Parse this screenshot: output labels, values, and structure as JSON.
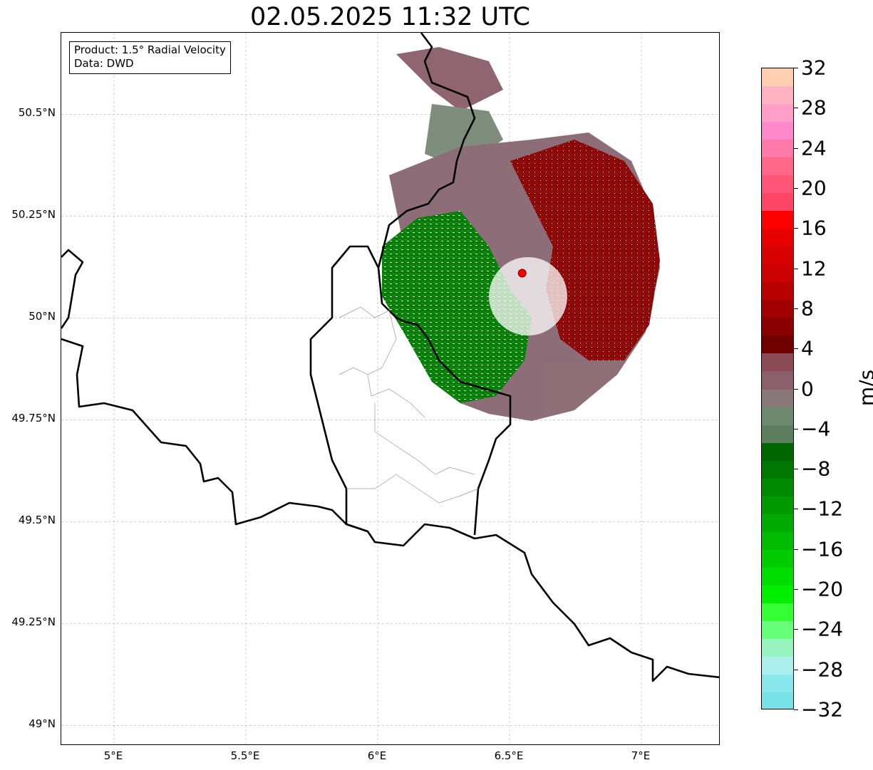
{
  "title": "02.05.2025 11:32 UTC",
  "info_box": {
    "product": "Product: 1.5° Radial Velocity",
    "data": "Data: DWD"
  },
  "map": {
    "lon_range": [
      4.8,
      7.3
    ],
    "lat_range": [
      48.95,
      50.7
    ],
    "lat_ticks": [
      {
        "value": 50.5,
        "label": "50.5°N"
      },
      {
        "value": 50.25,
        "label": "50.25°N"
      },
      {
        "value": 50.0,
        "label": "50°N"
      },
      {
        "value": 49.75,
        "label": "49.75°N"
      },
      {
        "value": 49.5,
        "label": "49.5°N"
      },
      {
        "value": 49.25,
        "label": "49.25°N"
      },
      {
        "value": 49.0,
        "label": "49°N"
      }
    ],
    "lon_ticks": [
      {
        "value": 5.0,
        "label": "5°E"
      },
      {
        "value": 5.5,
        "label": "5.5°E"
      },
      {
        "value": 6.0,
        "label": "6°E"
      },
      {
        "value": 6.5,
        "label": "6.5°E"
      },
      {
        "value": 7.0,
        "label": "7°E"
      }
    ],
    "radar_site": {
      "lon": 6.548,
      "lat": 50.11,
      "color": "#ff0000"
    },
    "border_color": "#000000",
    "internal_border_color": "#999999",
    "gridlines": true
  },
  "colorbar": {
    "unit": "m/s",
    "range": [
      -32,
      32
    ],
    "ticks": [
      "32",
      "28",
      "24",
      "20",
      "16",
      "12",
      "8",
      "4",
      "0",
      "−4",
      "−8",
      "−12",
      "−16",
      "−20",
      "−24",
      "−28",
      "−32"
    ],
    "tick_values": [
      32,
      28,
      24,
      20,
      16,
      12,
      8,
      4,
      0,
      -4,
      -8,
      -12,
      -16,
      -20,
      -24,
      -28,
      -32
    ],
    "colors_top_to_bottom": [
      "#ffcfb0",
      "#ffb2c2",
      "#ff9ec8",
      "#ff88cc",
      "#ff7aa8",
      "#ff6688",
      "#ff5577",
      "#ff4466",
      "#ff0000",
      "#e80000",
      "#d80000",
      "#cc0000",
      "#b80000",
      "#a00000",
      "#8a0000",
      "#700000",
      "#8b4a55",
      "#8a606c",
      "#8a7878",
      "#6e8a6e",
      "#5e7f5e",
      "#006600",
      "#007800",
      "#008a00",
      "#009a00",
      "#00aa00",
      "#00bb00",
      "#00cc00",
      "#00dd00",
      "#00f000",
      "#33ff33",
      "#66ff77",
      "#99f5c0",
      "#aaeeee",
      "#88e8ee",
      "#77e2e8"
    ]
  }
}
